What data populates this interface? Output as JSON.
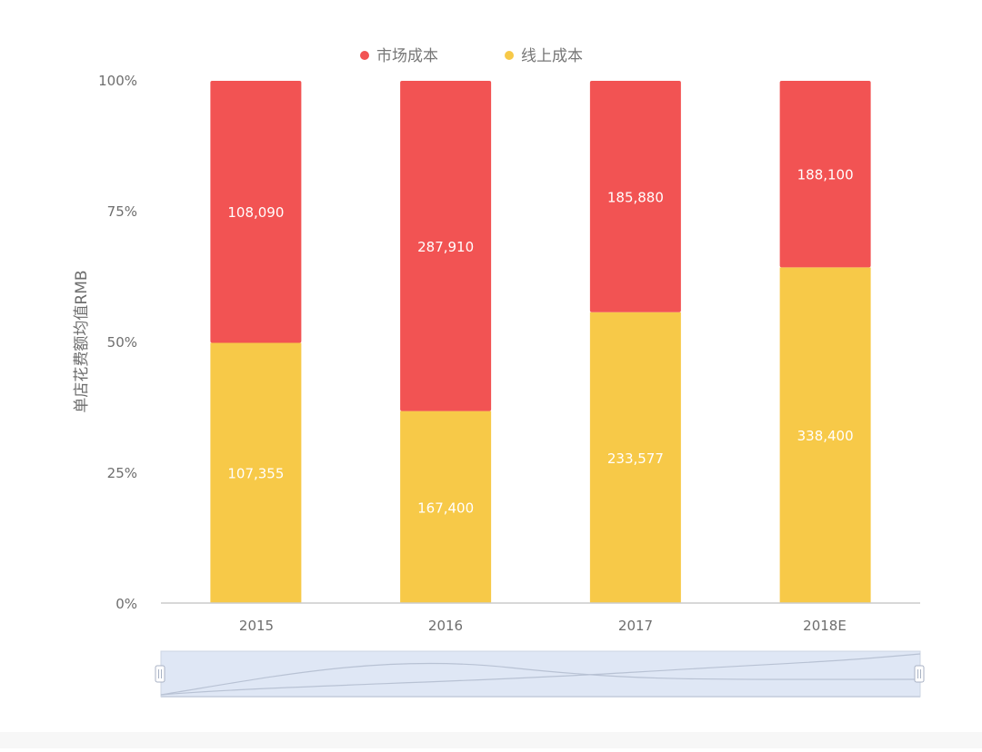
{
  "colors": {
    "market": "#f25353",
    "online": "#f7c948",
    "axis": "#cccccc",
    "tick_text": "#6e6e6e",
    "legend_text": "#777777",
    "slider_fill": "#dfe7f5",
    "slider_border": "#cdd5e3"
  },
  "legend": {
    "placement": "top-center",
    "items": [
      {
        "label": "市场成本",
        "color": "#f25353"
      },
      {
        "label": "线上成本",
        "color": "#f7c948"
      }
    ]
  },
  "chart_data": {
    "type": "bar",
    "stacked": "percent",
    "categories": [
      "2015",
      "2016",
      "2017",
      "2018E"
    ],
    "series": [
      {
        "name": "线上成本",
        "color": "#f7c948",
        "values": [
          107355,
          167400,
          233577,
          338400
        ]
      },
      {
        "name": "市场成本",
        "color": "#f25353",
        "values": [
          108090,
          287910,
          185880,
          188100
        ]
      }
    ],
    "ylabel": "单店花费额均值RMB",
    "y_ticks": [
      "0%",
      "25%",
      "50%",
      "75%",
      "100%"
    ],
    "ylim": [
      0,
      100
    ],
    "grid": false,
    "legend": "top-center",
    "data_labels": true,
    "data_zoom": {
      "visible": true,
      "start": 0,
      "end": 100
    }
  }
}
